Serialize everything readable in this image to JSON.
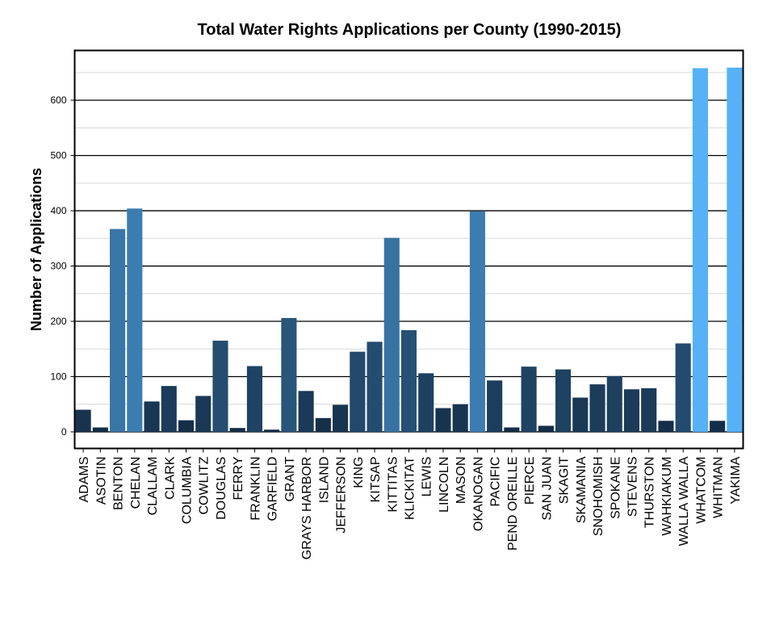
{
  "chart_data": {
    "type": "bar",
    "title": "Total Water Rights Applications per County (1990-2015)",
    "xlabel": "",
    "ylabel": "Number of Applications",
    "ylim": [
      -30,
      690
    ],
    "yticks": [
      0,
      100,
      200,
      300,
      400,
      500,
      600
    ],
    "grid": true,
    "legend": "none",
    "categories": [
      "ADAMS",
      "ASOTIN",
      "BENTON",
      "CHELAN",
      "CLALLAM",
      "CLARK",
      "COLUMBIA",
      "COWLITZ",
      "DOUGLAS",
      "FERRY",
      "FRANKLIN",
      "GARFIELD",
      "GRANT",
      "GRAYS HARBOR",
      "ISLAND",
      "JEFFERSON",
      "KING",
      "KITSAP",
      "KITTITAS",
      "KLICKITAT",
      "LEWIS",
      "LINCOLN",
      "MASON",
      "OKANOGAN",
      "PACIFIC",
      "PEND OREILLE",
      "PIERCE",
      "SAN JUAN",
      "SKAGIT",
      "SKAMANIA",
      "SNOHOMISH",
      "SPOKANE",
      "STEVENS",
      "THURSTON",
      "WAHKIAKUM",
      "WALLA WALLA",
      "WHATCOM",
      "WHITMAN",
      "YAKIMA"
    ],
    "values": [
      40,
      8,
      367,
      404,
      55,
      83,
      21,
      65,
      165,
      7,
      119,
      4,
      206,
      74,
      25,
      49,
      145,
      163,
      351,
      184,
      106,
      43,
      50,
      399,
      93,
      8,
      118,
      11,
      113,
      62,
      86,
      101,
      77,
      79,
      20,
      160,
      658,
      20,
      659
    ],
    "color_scale": {
      "low": "#132B43",
      "high": "#56B1F7",
      "min": 0,
      "max": 660
    }
  }
}
